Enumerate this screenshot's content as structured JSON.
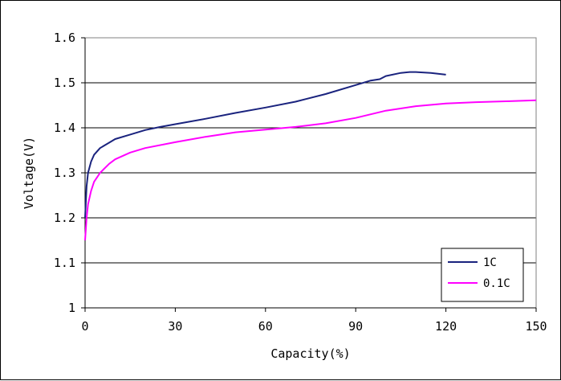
{
  "chart_data": {
    "type": "line",
    "title": "",
    "xlabel": "Capacity(%)",
    "ylabel": "Voltage(V)",
    "xlim": [
      0,
      150
    ],
    "ylim": [
      1.0,
      1.6
    ],
    "xticks": [
      0,
      30,
      60,
      90,
      120,
      150
    ],
    "yticks": [
      1,
      1.1,
      1.2,
      1.3,
      1.4,
      1.5,
      1.6
    ],
    "ytick_labels": [
      "1",
      "1.1",
      "1.2",
      "1.3",
      "1.4",
      "1.5",
      "1.6"
    ],
    "xtick_labels": [
      "0",
      "30",
      "60",
      "90",
      "120",
      "150"
    ],
    "grid": "horizontal",
    "legend_position": "bottom-right",
    "series": [
      {
        "name": "1C",
        "color": "#1a237e",
        "x": [
          0,
          0.5,
          1,
          2,
          3,
          5,
          8,
          10,
          15,
          20,
          25,
          30,
          40,
          50,
          60,
          70,
          80,
          90,
          95,
          98,
          100,
          105,
          108,
          110,
          115,
          120
        ],
        "y": [
          1.2,
          1.27,
          1.3,
          1.325,
          1.34,
          1.355,
          1.367,
          1.375,
          1.385,
          1.395,
          1.402,
          1.408,
          1.42,
          1.433,
          1.445,
          1.458,
          1.475,
          1.495,
          1.505,
          1.508,
          1.515,
          1.522,
          1.524,
          1.524,
          1.522,
          1.518
        ]
      },
      {
        "name": "0.1C",
        "color": "#ff00ff",
        "x": [
          0,
          0.5,
          1,
          2,
          3,
          5,
          8,
          10,
          15,
          20,
          30,
          40,
          50,
          60,
          70,
          80,
          90,
          100,
          110,
          120,
          130,
          140,
          150
        ],
        "y": [
          1.15,
          1.2,
          1.23,
          1.26,
          1.28,
          1.3,
          1.32,
          1.33,
          1.345,
          1.355,
          1.368,
          1.38,
          1.39,
          1.396,
          1.402,
          1.41,
          1.422,
          1.438,
          1.448,
          1.454,
          1.457,
          1.459,
          1.461
        ]
      }
    ]
  }
}
